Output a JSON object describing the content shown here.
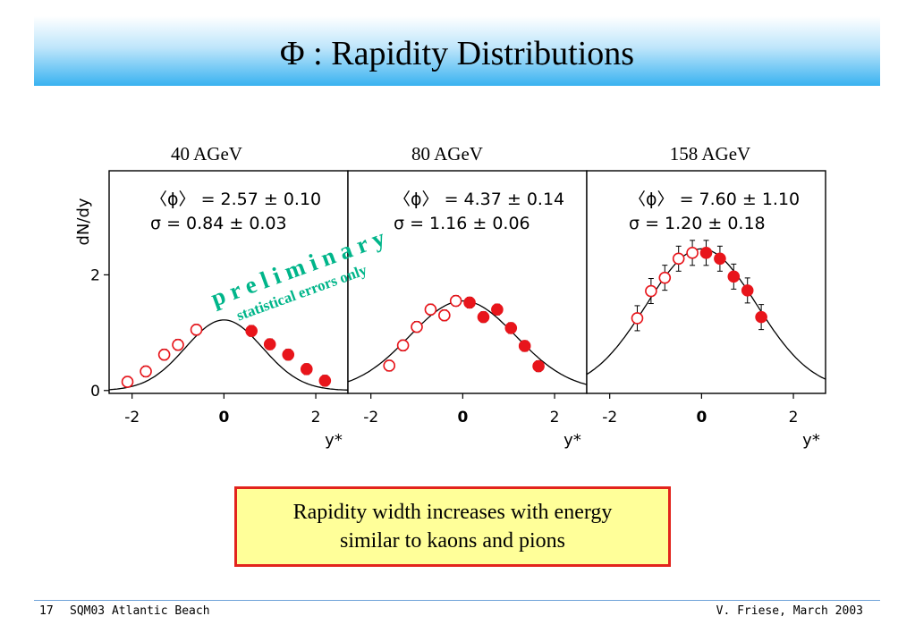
{
  "slide": {
    "title": "Φ : Rapidity Distributions",
    "note_lines": [
      "Rapidity width increases with energy",
      "similar to kaons and pions"
    ],
    "footer": {
      "page": "17",
      "event": "SQM03 Atlantic Beach",
      "author": "V. Friese, March 2003"
    },
    "overlay": {
      "word": "p r e l i m i n a r y",
      "sub": "statistical errors only"
    }
  },
  "chart_data": [
    {
      "type": "scatter",
      "title": "40 AGeV",
      "ylabel": "dN/dy",
      "xlabel": "y*",
      "xticks": [
        "-2",
        "0",
        "2"
      ],
      "yticks": [
        "0",
        "2"
      ],
      "xlim": [
        -2.5,
        2.7
      ],
      "ylim": [
        -0.05,
        3.8
      ],
      "stats": [
        "〈ϕ〉 = 2.57 ± 0.10",
        "σ = 0.84 ± 0.03"
      ],
      "fit": {
        "kind": "gaussian",
        "amplitude": 1.22,
        "sigma": 0.84
      },
      "series": [
        {
          "marker": "open",
          "x": [
            -2.1,
            -1.7,
            -1.3,
            -1.0,
            -0.6
          ],
          "y": [
            0.15,
            0.33,
            0.62,
            0.79,
            1.05
          ]
        },
        {
          "marker": "filled",
          "x": [
            0.6,
            1.0,
            1.4,
            1.8,
            2.2
          ],
          "y": [
            1.03,
            0.8,
            0.62,
            0.37,
            0.17
          ]
        }
      ]
    },
    {
      "type": "scatter",
      "title": "80 AGeV",
      "ylabel": "dN/dy",
      "xlabel": "y*",
      "xticks": [
        "-2",
        "0",
        "2"
      ],
      "yticks": [
        "0",
        "2"
      ],
      "xlim": [
        -2.5,
        2.7
      ],
      "ylim": [
        -0.05,
        3.8
      ],
      "stats": [
        "〈ϕ〉 = 4.37 ± 0.14",
        "σ = 1.16 ± 0.06"
      ],
      "fit": {
        "kind": "gaussian",
        "amplitude": 1.55,
        "sigma": 1.16
      },
      "series": [
        {
          "marker": "open",
          "x": [
            -1.6,
            -1.3,
            -1.0,
            -0.7,
            -0.4,
            -0.15
          ],
          "y": [
            0.43,
            0.78,
            1.1,
            1.4,
            1.3,
            1.55
          ]
        },
        {
          "marker": "filled",
          "x": [
            0.15,
            0.45,
            0.75,
            1.05,
            1.35,
            1.65
          ],
          "y": [
            1.52,
            1.27,
            1.4,
            1.08,
            0.77,
            0.42
          ]
        }
      ]
    },
    {
      "type": "scatter",
      "title": "158 AGeV",
      "ylabel": "dN/dy",
      "xlabel": "y*",
      "xticks": [
        "-2",
        "0",
        "2"
      ],
      "yticks": [
        "0",
        "2"
      ],
      "xlim": [
        -2.5,
        2.7
      ],
      "ylim": [
        -0.05,
        3.8
      ],
      "stats": [
        "〈ϕ〉 = 7.60 ± 1.10",
        "σ = 1.20 ± 0.18"
      ],
      "fit": {
        "kind": "gaussian",
        "amplitude": 2.45,
        "sigma": 1.2
      },
      "series": [
        {
          "marker": "open",
          "x": [
            -1.4,
            -1.1,
            -0.8,
            -0.5,
            -0.2
          ],
          "y": [
            1.25,
            1.72,
            1.95,
            2.28,
            2.38
          ]
        },
        {
          "marker": "filled",
          "x": [
            0.1,
            0.4,
            0.7,
            1.0,
            1.3
          ],
          "y": [
            2.38,
            2.28,
            1.97,
            1.73,
            1.27
          ]
        }
      ]
    }
  ]
}
